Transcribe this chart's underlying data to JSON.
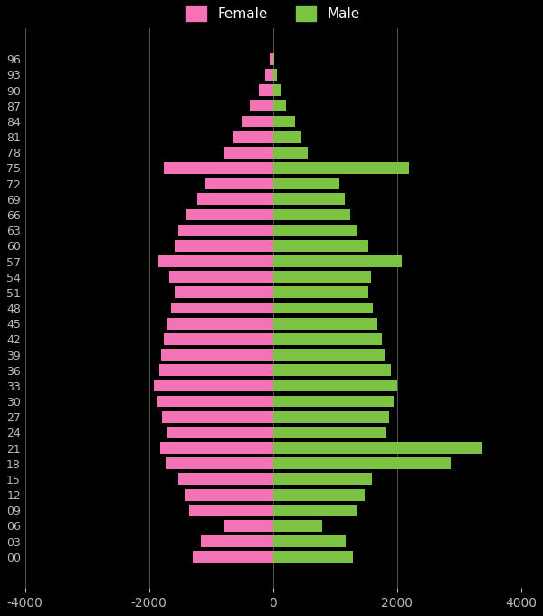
{
  "background_color": "#000000",
  "female_color": "#F472B6",
  "male_color": "#7DC343",
  "grid_color": "#555555",
  "tick_color": "#BBBBBB",
  "ages": [
    "96",
    "93",
    "90",
    "87",
    "84",
    "81",
    "78",
    "75",
    "72",
    "69",
    "66",
    "63",
    "60",
    "57",
    "54",
    "51",
    "48",
    "45",
    "42",
    "39",
    "36",
    "33",
    "30",
    "27",
    "24",
    "21",
    "18",
    "15",
    "12",
    "09",
    "06",
    "03",
    "00"
  ],
  "female": [
    55,
    120,
    230,
    370,
    510,
    640,
    800,
    1760,
    1090,
    1220,
    1400,
    1530,
    1580,
    1850,
    1680,
    1580,
    1650,
    1700,
    1760,
    1810,
    1830,
    1920,
    1870,
    1790,
    1710,
    1820,
    1740,
    1530,
    1430,
    1360,
    790,
    1170,
    1290
  ],
  "male": [
    25,
    60,
    120,
    210,
    350,
    460,
    560,
    2200,
    1070,
    1160,
    1250,
    1370,
    1540,
    2080,
    1580,
    1540,
    1610,
    1690,
    1750,
    1800,
    1910,
    2010,
    1940,
    1870,
    1820,
    3380,
    2870,
    1590,
    1480,
    1360,
    790,
    1180,
    1290
  ],
  "xlim": [
    -4000,
    4000
  ],
  "xtick_vals": [
    -4000,
    -2000,
    0,
    2000,
    4000
  ],
  "xtick_labels": [
    "-4000",
    "-2000",
    "0",
    "2000",
    "4000"
  ]
}
